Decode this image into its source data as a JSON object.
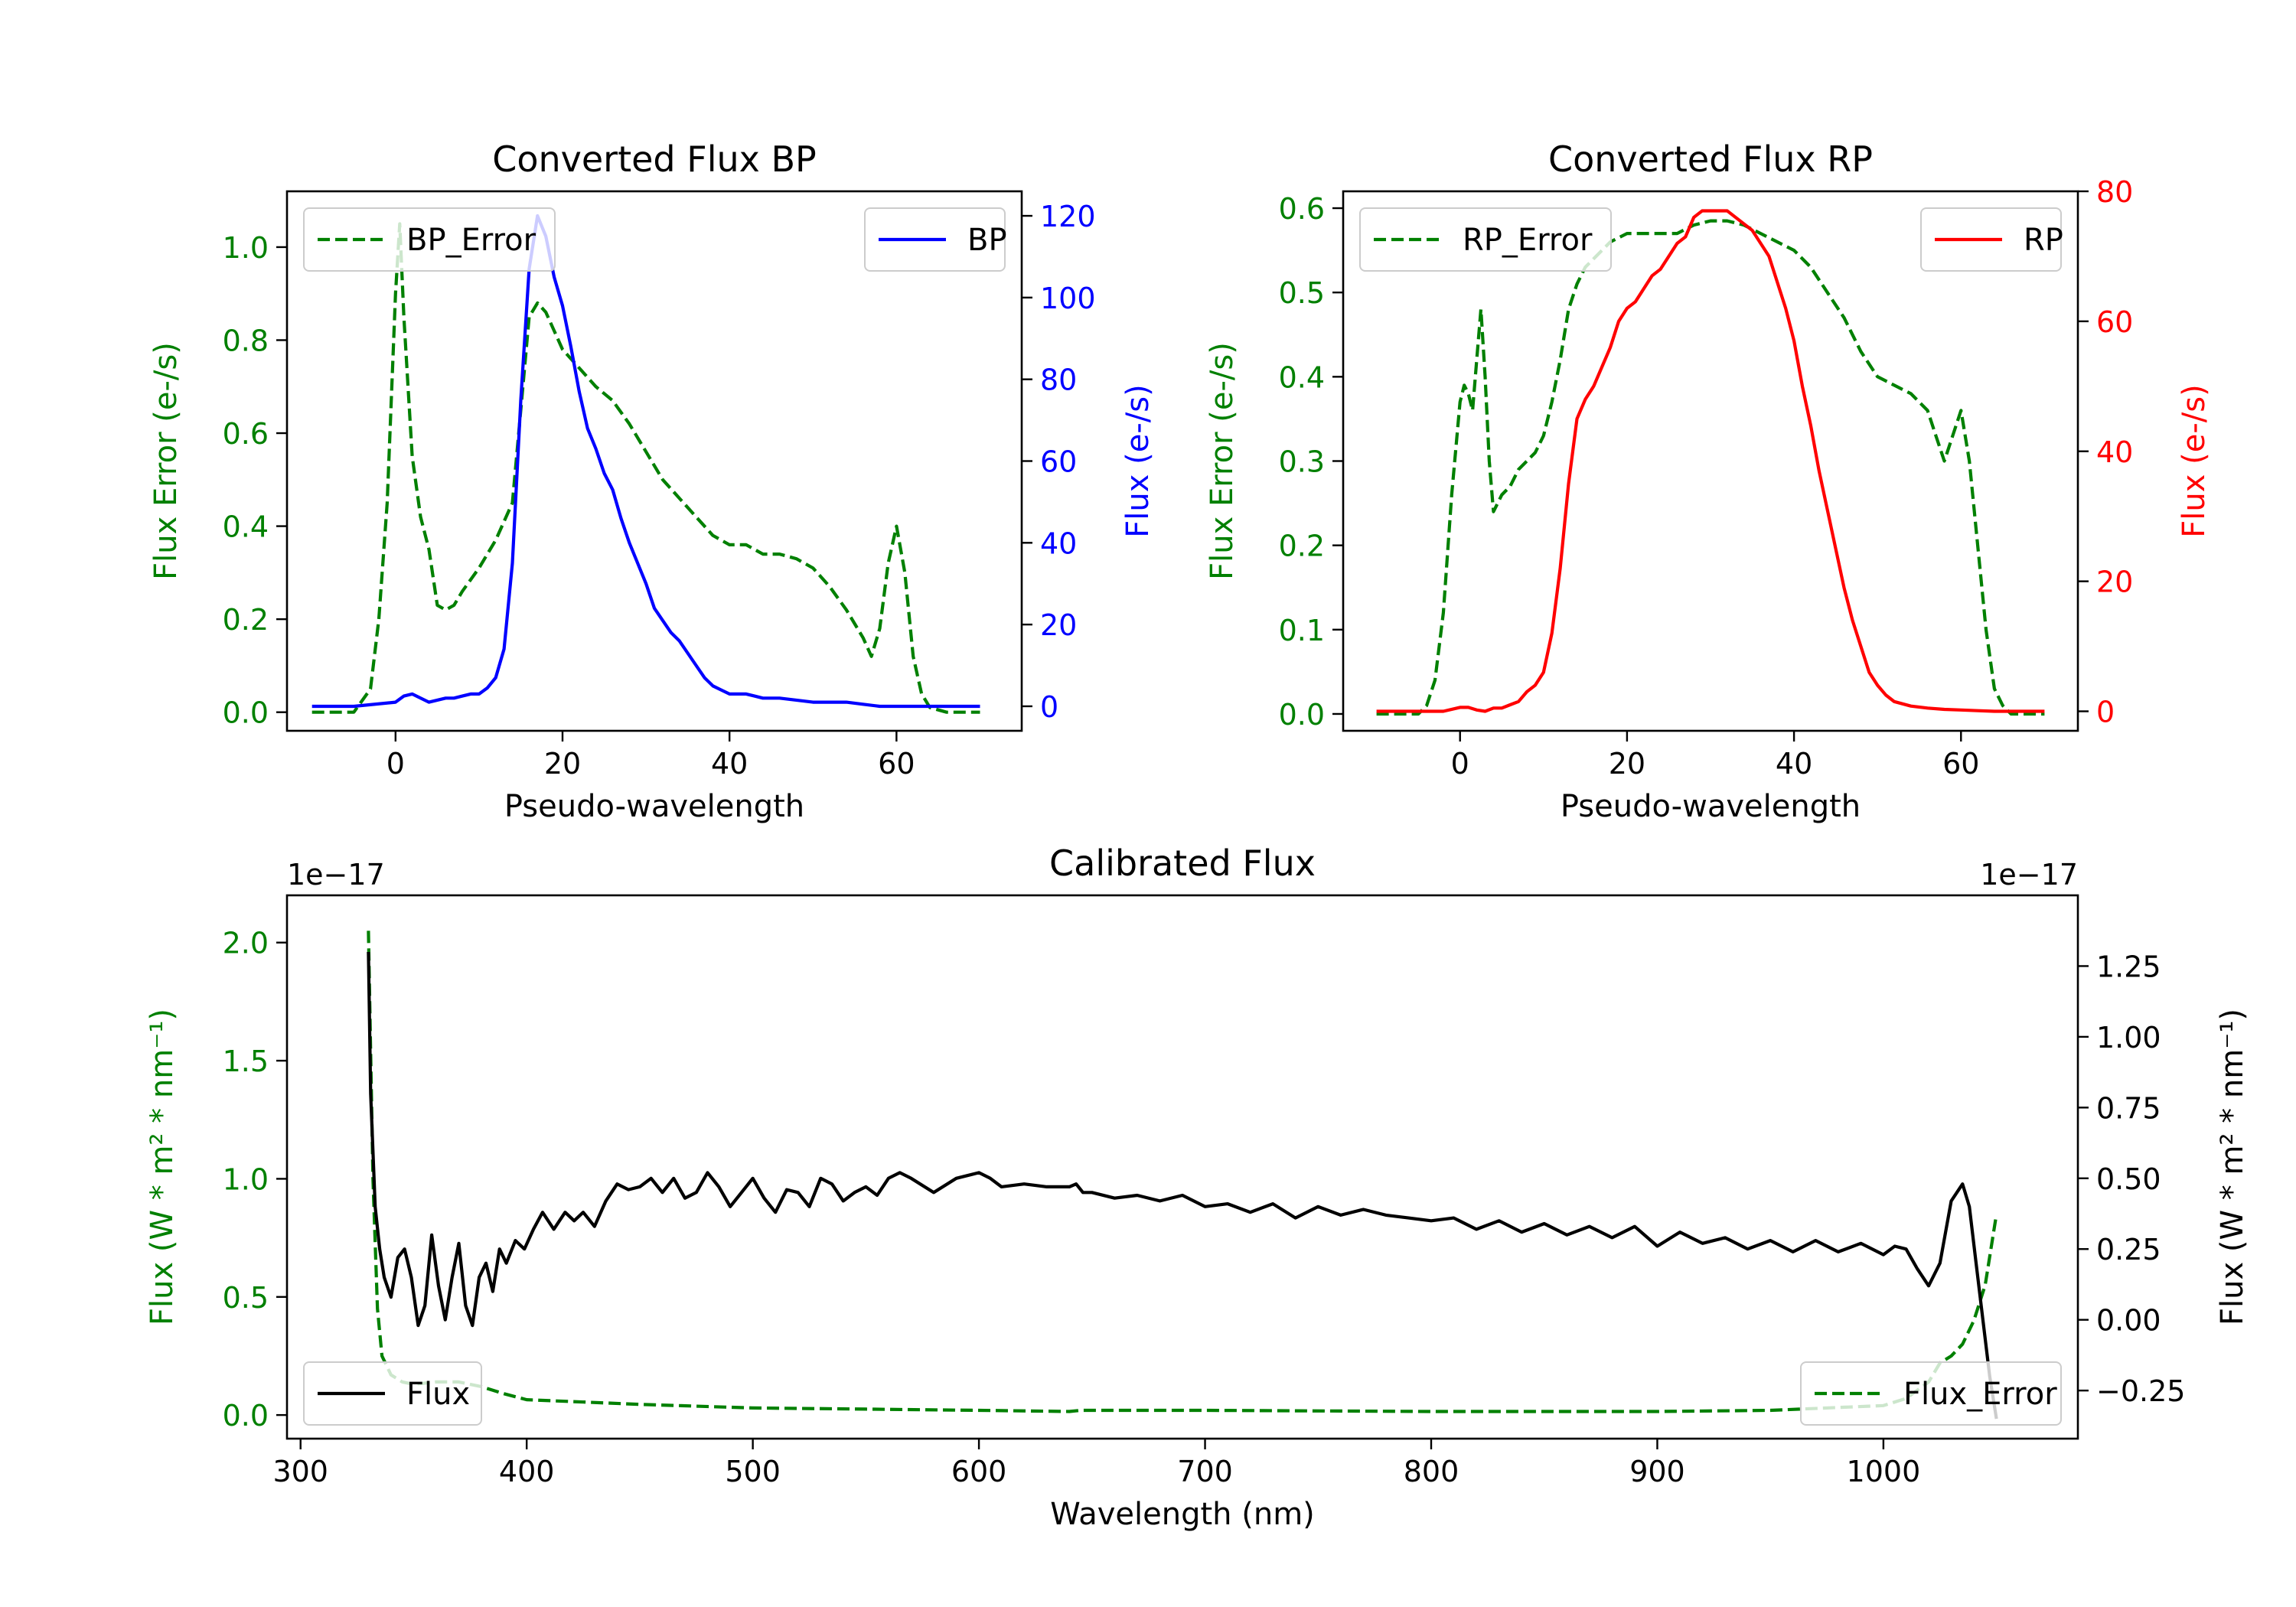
{
  "colors": {
    "bp": "#0000ff",
    "rp": "#ff0000",
    "error": "#008000",
    "flux": "#000000",
    "axis": "#000000"
  },
  "chart_data": [
    {
      "id": "bp",
      "type": "line",
      "title": "Converted Flux BP",
      "xlabel": "Pseudo-wavelength",
      "ylabel_left": "Flux Error (e-/s)",
      "ylabel_right": "Flux (e-/s)",
      "xlim": [
        -13,
        75
      ],
      "ylim_left": [
        -0.04,
        1.12
      ],
      "ylim_right": [
        -6,
        126
      ],
      "xticks": [
        0,
        20,
        40,
        60
      ],
      "yticks_left": [
        0.0,
        0.2,
        0.4,
        0.6,
        0.8,
        1.0
      ],
      "yticks_right": [
        0,
        20,
        40,
        60,
        80,
        100,
        120
      ],
      "legend_left": "BP_Error",
      "legend_right": "BP",
      "series": [
        {
          "name": "BP_Error",
          "axis": "left",
          "style": "dashed",
          "x": [
            -10,
            -5,
            -3,
            -2,
            -1,
            0,
            0.5,
            1,
            2,
            3,
            4,
            5,
            6,
            7,
            8,
            10,
            12,
            14,
            15,
            16,
            17,
            18,
            19,
            20,
            22,
            24,
            26,
            28,
            30,
            32,
            34,
            36,
            38,
            40,
            42,
            44,
            46,
            48,
            50,
            52,
            54,
            56,
            57,
            58,
            59,
            60,
            61,
            62,
            63,
            64,
            66,
            68,
            70
          ],
          "y": [
            0.0,
            0.0,
            0.05,
            0.2,
            0.45,
            0.9,
            1.05,
            0.85,
            0.55,
            0.42,
            0.35,
            0.23,
            0.22,
            0.23,
            0.26,
            0.31,
            0.37,
            0.45,
            0.65,
            0.85,
            0.88,
            0.86,
            0.82,
            0.78,
            0.74,
            0.7,
            0.67,
            0.62,
            0.56,
            0.5,
            0.46,
            0.42,
            0.38,
            0.36,
            0.36,
            0.34,
            0.34,
            0.33,
            0.31,
            0.27,
            0.22,
            0.16,
            0.12,
            0.18,
            0.32,
            0.4,
            0.3,
            0.12,
            0.04,
            0.01,
            0.0,
            0.0,
            0.0
          ]
        },
        {
          "name": "BP",
          "axis": "right",
          "style": "solid",
          "x": [
            -10,
            -5,
            0,
            1,
            2,
            3,
            4,
            5,
            6,
            7,
            8,
            9,
            10,
            11,
            12,
            13,
            14,
            15,
            16,
            17,
            18,
            19,
            20,
            21,
            22,
            23,
            24,
            25,
            26,
            27,
            28,
            29,
            30,
            31,
            32,
            33,
            34,
            35,
            36,
            37,
            38,
            39,
            40,
            41,
            42,
            43,
            44,
            45,
            46,
            48,
            50,
            52,
            54,
            56,
            58,
            60,
            62,
            64,
            66,
            68,
            70
          ],
          "y": [
            0,
            0,
            1,
            2.5,
            3,
            2,
            1,
            1.5,
            2,
            2,
            2.5,
            3,
            3,
            4.5,
            7,
            14,
            35,
            75,
            107,
            120,
            115,
            105,
            98,
            88,
            77,
            68,
            63,
            57,
            53,
            46,
            40,
            35,
            30,
            24,
            21,
            18,
            16,
            13,
            10,
            7,
            5,
            4,
            3,
            3,
            3,
            2.5,
            2,
            2,
            2,
            1.5,
            1,
            1,
            1,
            0.5,
            0,
            0,
            0,
            0,
            0,
            0,
            0
          ]
        }
      ]
    },
    {
      "id": "rp",
      "type": "line",
      "title": "Converted Flux RP",
      "xlabel": "Pseudo-wavelength",
      "ylabel_left": "Flux Error (e-/s)",
      "ylabel_right": "Flux (e-/s)",
      "xlim": [
        -14,
        74
      ],
      "ylim_left": [
        -0.02,
        0.62
      ],
      "ylim_right": [
        -3,
        80
      ],
      "xticks": [
        0,
        20,
        40,
        60
      ],
      "yticks_left": [
        0.0,
        0.1,
        0.2,
        0.3,
        0.4,
        0.5,
        0.6
      ],
      "yticks_right": [
        0,
        20,
        40,
        60,
        80
      ],
      "legend_left": "RP_Error",
      "legend_right": "RP",
      "series": [
        {
          "name": "RP_Error",
          "axis": "left",
          "style": "dashed",
          "x": [
            -10,
            -5,
            -4,
            -3,
            -2,
            -1,
            0,
            0.5,
            1,
            1.5,
            2,
            2.5,
            3,
            3.5,
            4,
            5,
            6,
            7,
            8,
            9,
            10,
            11,
            12,
            13,
            14,
            15,
            16,
            17,
            18,
            20,
            22,
            24,
            26,
            28,
            30,
            32,
            34,
            36,
            38,
            40,
            42,
            44,
            46,
            48,
            50,
            52,
            54,
            56,
            57,
            58,
            59,
            60,
            61,
            62,
            63,
            64,
            65,
            66,
            68,
            70
          ],
          "y": [
            0.0,
            0.0,
            0.01,
            0.04,
            0.12,
            0.26,
            0.37,
            0.39,
            0.38,
            0.36,
            0.42,
            0.48,
            0.4,
            0.3,
            0.24,
            0.26,
            0.27,
            0.29,
            0.3,
            0.31,
            0.33,
            0.37,
            0.42,
            0.48,
            0.51,
            0.53,
            0.54,
            0.55,
            0.56,
            0.57,
            0.57,
            0.57,
            0.57,
            0.58,
            0.585,
            0.585,
            0.58,
            0.57,
            0.56,
            0.55,
            0.53,
            0.5,
            0.47,
            0.43,
            0.4,
            0.39,
            0.38,
            0.36,
            0.33,
            0.3,
            0.33,
            0.36,
            0.3,
            0.2,
            0.1,
            0.03,
            0.01,
            0.0,
            0.0,
            0.0
          ]
        },
        {
          "name": "RP",
          "axis": "right",
          "style": "solid",
          "x": [
            -10,
            -5,
            -2,
            0,
            1,
            2,
            3,
            4,
            5,
            6,
            7,
            8,
            9,
            10,
            11,
            12,
            13,
            14,
            15,
            16,
            17,
            18,
            19,
            20,
            21,
            22,
            23,
            24,
            25,
            26,
            27,
            28,
            29,
            30,
            31,
            32,
            33,
            34,
            35,
            36,
            37,
            38,
            39,
            40,
            41,
            42,
            43,
            44,
            45,
            46,
            47,
            48,
            49,
            50,
            51,
            52,
            54,
            56,
            58,
            60,
            62,
            64,
            66,
            68,
            70
          ],
          "y": [
            0,
            0,
            0,
            0.6,
            0.6,
            0.2,
            0,
            0.5,
            0.5,
            1,
            1.5,
            3,
            4,
            6,
            12,
            22,
            35,
            45,
            48,
            50,
            53,
            56,
            60,
            62,
            63,
            65,
            67,
            68,
            70,
            72,
            73,
            76,
            77,
            77,
            77,
            77,
            76,
            75,
            74,
            72,
            70,
            66,
            62,
            57,
            50,
            44,
            37,
            31,
            25,
            19,
            14,
            10,
            6,
            4,
            2.5,
            1.5,
            0.8,
            0.5,
            0.3,
            0.2,
            0.1,
            0,
            0,
            0,
            0
          ]
        }
      ]
    },
    {
      "id": "calibrated",
      "type": "line",
      "title": "Calibrated Flux",
      "xlabel": "Wavelength (nm)",
      "ylabel_left": "Flux (W * m² * nm⁻¹)",
      "ylabel_right": "Flux (W * m² * nm⁻¹)",
      "offset_left": "1e−17",
      "offset_right": "1e−17",
      "xlim": [
        294,
        1086
      ],
      "ylim_left": [
        -0.1,
        2.2
      ],
      "ylim_right": [
        -0.42,
        1.5
      ],
      "xticks": [
        300,
        400,
        500,
        600,
        700,
        800,
        900,
        1000
      ],
      "yticks_left": [
        0.0,
        0.5,
        1.0,
        1.5,
        2.0
      ],
      "yticks_right": [
        -0.25,
        0.0,
        0.25,
        0.5,
        0.75,
        1.0,
        1.25
      ],
      "legend_left": "Flux",
      "legend_right": "Flux_Error",
      "series": [
        {
          "name": "Flux_Error",
          "axis": "left",
          "style": "dashed",
          "x": [
            330,
            332,
            334,
            336,
            340,
            345,
            350,
            360,
            370,
            380,
            390,
            400,
            450,
            500,
            550,
            600,
            640,
            645,
            700,
            800,
            900,
            950,
            1000,
            1010,
            1020,
            1025,
            1030,
            1035,
            1040,
            1045,
            1050
          ],
          "y": [
            2.05,
            1.0,
            0.45,
            0.25,
            0.17,
            0.14,
            0.13,
            0.14,
            0.14,
            0.12,
            0.09,
            0.065,
            0.045,
            0.03,
            0.025,
            0.02,
            0.015,
            0.02,
            0.02,
            0.015,
            0.015,
            0.02,
            0.04,
            0.07,
            0.14,
            0.22,
            0.25,
            0.3,
            0.4,
            0.55,
            0.85
          ]
        },
        {
          "name": "Flux",
          "axis": "right",
          "style": "solid",
          "x": [
            330,
            331,
            333,
            335,
            337,
            340,
            343,
            346,
            349,
            352,
            355,
            358,
            361,
            364,
            367,
            370,
            373,
            376,
            379,
            382,
            385,
            388,
            391,
            395,
            399,
            403,
            407,
            412,
            417,
            421,
            425,
            430,
            435,
            440,
            445,
            450,
            455,
            460,
            465,
            470,
            475,
            480,
            485,
            490,
            495,
            500,
            505,
            510,
            515,
            520,
            525,
            530,
            535,
            540,
            545,
            550,
            555,
            560,
            565,
            570,
            580,
            590,
            600,
            605,
            610,
            620,
            630,
            640,
            643,
            646,
            650,
            660,
            670,
            680,
            690,
            700,
            710,
            720,
            730,
            740,
            750,
            760,
            770,
            780,
            790,
            800,
            810,
            820,
            830,
            840,
            850,
            860,
            870,
            880,
            890,
            900,
            910,
            920,
            930,
            940,
            950,
            960,
            970,
            980,
            990,
            1000,
            1005,
            1010,
            1015,
            1020,
            1025,
            1030,
            1035,
            1038,
            1041,
            1044,
            1047,
            1050
          ],
          "y": [
            1.3,
            0.8,
            0.4,
            0.25,
            0.15,
            0.08,
            0.22,
            0.25,
            0.15,
            -0.02,
            0.05,
            0.3,
            0.12,
            0.0,
            0.15,
            0.27,
            0.05,
            -0.02,
            0.15,
            0.2,
            0.1,
            0.25,
            0.2,
            0.28,
            0.25,
            0.32,
            0.38,
            0.32,
            0.38,
            0.35,
            0.38,
            0.33,
            0.42,
            0.48,
            0.46,
            0.47,
            0.5,
            0.45,
            0.5,
            0.43,
            0.45,
            0.52,
            0.47,
            0.4,
            0.45,
            0.5,
            0.43,
            0.38,
            0.46,
            0.45,
            0.4,
            0.5,
            0.48,
            0.42,
            0.45,
            0.47,
            0.44,
            0.5,
            0.52,
            0.5,
            0.45,
            0.5,
            0.52,
            0.5,
            0.47,
            0.48,
            0.47,
            0.47,
            0.48,
            0.45,
            0.45,
            0.43,
            0.44,
            0.42,
            0.44,
            0.4,
            0.41,
            0.38,
            0.41,
            0.36,
            0.4,
            0.37,
            0.39,
            0.37,
            0.36,
            0.35,
            0.36,
            0.32,
            0.35,
            0.31,
            0.34,
            0.3,
            0.33,
            0.29,
            0.33,
            0.26,
            0.31,
            0.27,
            0.29,
            0.25,
            0.28,
            0.24,
            0.28,
            0.24,
            0.27,
            0.23,
            0.26,
            0.25,
            0.18,
            0.12,
            0.2,
            0.42,
            0.48,
            0.4,
            0.2,
            0.0,
            -0.2,
            -0.35
          ]
        }
      ]
    }
  ]
}
